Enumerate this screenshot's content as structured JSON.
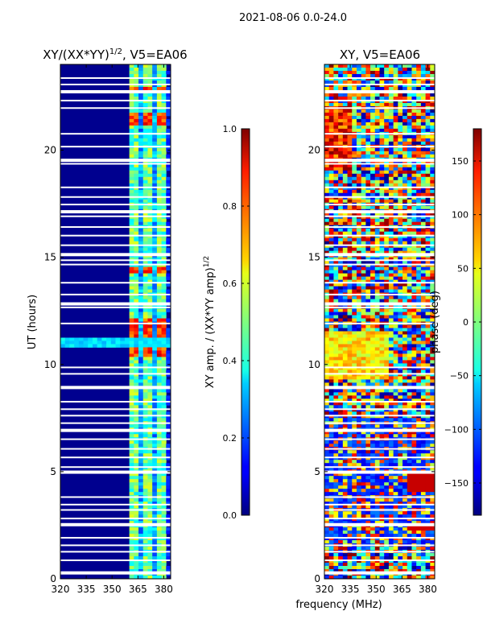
{
  "suptitle": "2021-08-06 0.0-24.0",
  "xlabel_shared": "frequency (MHz)",
  "chart_data": [
    {
      "type": "heatmap",
      "title": "XY/(XX*YY)^1/2, V5=EA06",
      "title_main": "XY/(XX*YY)",
      "title_sup": "1/2",
      "title_rest": ", V5=EA06",
      "ylabel": "UT (hours)",
      "xlim": [
        320,
        384
      ],
      "ylim": [
        0,
        24
      ],
      "xticks": [
        320,
        335,
        350,
        365,
        380
      ],
      "yticks": [
        0,
        5,
        10,
        15,
        20
      ],
      "colormap": "jet",
      "colorbar": {
        "label_main": "XY amp. / (XX*YY amp)",
        "label_sup": "1/2",
        "range": [
          0.0,
          1.0
        ],
        "ticks": [
          "0.0",
          "0.2",
          "0.4",
          "0.6",
          "0.8",
          "1.0"
        ]
      }
    },
    {
      "type": "heatmap",
      "title": "XY, V5=EA06",
      "ylabel": "",
      "xlim": [
        320,
        384
      ],
      "ylim": [
        0,
        24
      ],
      "xticks": [
        320,
        335,
        350,
        365,
        380
      ],
      "yticks": [
        0,
        5,
        10,
        15,
        20
      ],
      "colormap": "jet",
      "colorbar": {
        "label": "phase (deg)",
        "range": [
          -180,
          180
        ],
        "ticks": [
          "−150",
          "−100",
          "−50",
          "0",
          "50",
          "100",
          "150"
        ]
      }
    }
  ]
}
